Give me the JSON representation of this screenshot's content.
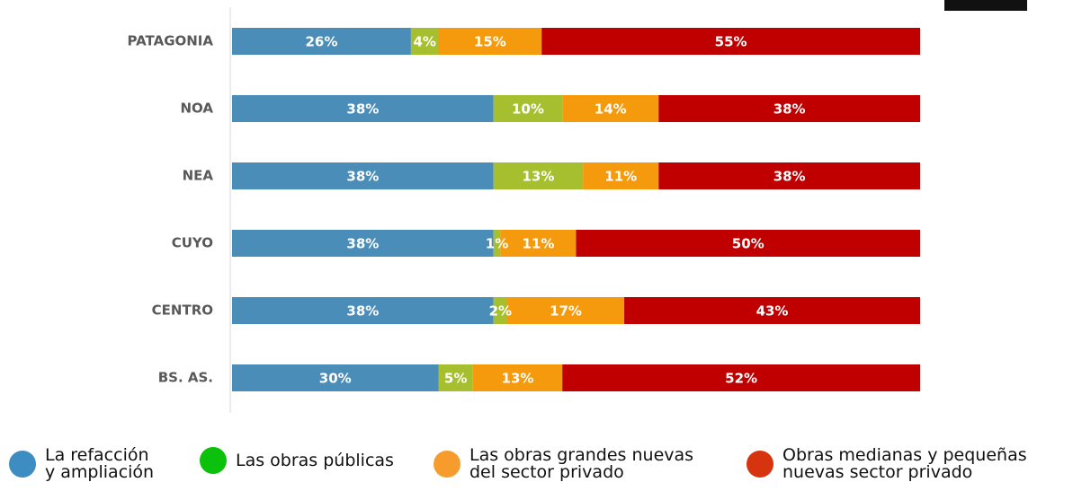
{
  "chart_data": {
    "type": "stacked_bar_horizontal",
    "categories": [
      "PATAGONIA",
      "NOA",
      "NEA",
      "CUYO",
      "CENTRO",
      "BS. AS."
    ],
    "xlim": [
      0,
      100
    ],
    "series": [
      {
        "name": "La refacción\ny ampliación",
        "color": "#4a8db8",
        "marker_color": "#3d8cc2",
        "values": [
          26,
          38,
          38,
          38,
          38,
          30
        ],
        "value_labels": [
          "26%",
          "38%",
          "38%",
          "38%",
          "38%",
          "30%"
        ]
      },
      {
        "name": "Las obras públicas",
        "color": "#a6bf2e",
        "marker_color": "#0cc10c",
        "values": [
          4,
          10,
          13,
          1,
          2,
          5
        ],
        "value_labels": [
          "4%",
          "10%",
          "13%",
          "1%",
          "2%",
          "5%"
        ]
      },
      {
        "name": "Las obras grandes nuevas\ndel sector privado",
        "color": "#f59a0c",
        "marker_color": "#f59c2c",
        "values": [
          15,
          14,
          11,
          11,
          17,
          13
        ],
        "value_labels": [
          "15%",
          "14%",
          "11%",
          "11%",
          "17%",
          "13%"
        ]
      },
      {
        "name": "Obras medianas y pequeñas\nnuevas sector privado",
        "color": "#c00000",
        "marker_color": "#d6340e",
        "values": [
          55,
          38,
          38,
          50,
          43,
          52
        ],
        "value_labels": [
          "55%",
          "38%",
          "38%",
          "50%",
          "43%",
          "52%"
        ]
      }
    ]
  }
}
